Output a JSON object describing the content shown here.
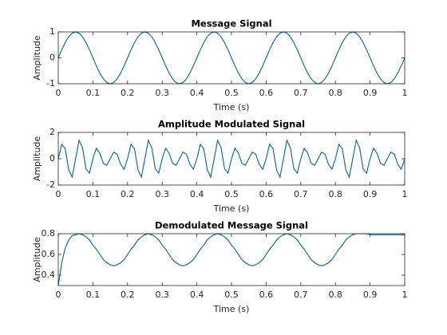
{
  "chart_data": [
    {
      "type": "line",
      "title": "Message Signal",
      "x_label": "Time (s)",
      "y_label": "Amplitude",
      "x": [
        0,
        0.01,
        0.02,
        0.03,
        0.04,
        0.05,
        0.06,
        0.07,
        0.08,
        0.09,
        0.1,
        0.11,
        0.12,
        0.13,
        0.14,
        0.15,
        0.16,
        0.17,
        0.18,
        0.19,
        0.2,
        0.21,
        0.22,
        0.23,
        0.24,
        0.25,
        0.26,
        0.27,
        0.28,
        0.29,
        0.3,
        0.31,
        0.32,
        0.33,
        0.34,
        0.35,
        0.36,
        0.37,
        0.38,
        0.39,
        0.4,
        0.41,
        0.42,
        0.43,
        0.44,
        0.45,
        0.46,
        0.47,
        0.48,
        0.49,
        0.5,
        0.51,
        0.52,
        0.53,
        0.54,
        0.55,
        0.56,
        0.57,
        0.58,
        0.59,
        0.6,
        0.61,
        0.62,
        0.63,
        0.64,
        0.65,
        0.66,
        0.67,
        0.68,
        0.69,
        0.7,
        0.71,
        0.72,
        0.73,
        0.74,
        0.75,
        0.76,
        0.77,
        0.78,
        0.79,
        0.8,
        0.81,
        0.82,
        0.83,
        0.84,
        0.85,
        0.86,
        0.87,
        0.88,
        0.89,
        0.9,
        0.91,
        0.92,
        0.93,
        0.94,
        0.95,
        0.96,
        0.97,
        0.98,
        0.99,
        1
      ],
      "series": [
        {
          "color": "#0e5f86",
          "values": [
            0,
            0.31,
            0.59,
            0.81,
            0.95,
            1,
            0.95,
            0.81,
            0.59,
            0.31,
            0,
            -0.31,
            -0.59,
            -0.81,
            -0.95,
            -1,
            -0.95,
            -0.81,
            -0.59,
            -0.31,
            0,
            0.31,
            0.59,
            0.81,
            0.95,
            1,
            0.95,
            0.81,
            0.59,
            0.31,
            0,
            -0.31,
            -0.59,
            -0.81,
            -0.95,
            -1,
            -0.95,
            -0.81,
            -0.59,
            -0.31,
            0,
            0.31,
            0.59,
            0.81,
            0.95,
            1,
            0.95,
            0.81,
            0.59,
            0.31,
            0,
            -0.31,
            -0.59,
            -0.81,
            -0.95,
            -1,
            -0.95,
            -0.81,
            -0.59,
            -0.31,
            0,
            0.31,
            0.59,
            0.81,
            0.95,
            1,
            0.95,
            0.81,
            0.59,
            0.31,
            0,
            -0.31,
            -0.59,
            -0.81,
            -0.95,
            -1,
            -0.95,
            -0.81,
            -0.59,
            -0.31,
            0,
            0.31,
            0.59,
            0.81,
            0.95,
            1,
            0.95,
            0.81,
            0.59,
            0.31,
            0,
            -0.31,
            -0.59,
            -0.81,
            -0.95,
            -1,
            -0.95,
            -0.81,
            -0.59,
            -0.31,
            0
          ]
        }
      ],
      "xlim": [
        0,
        1
      ],
      "xticks": [
        0,
        0.1,
        0.2,
        0.3,
        0.4,
        0.5,
        0.6,
        0.7,
        0.8,
        0.9,
        1
      ],
      "ylim": [
        -1,
        1
      ],
      "yticks": [
        -1,
        0,
        1
      ]
    },
    {
      "type": "line",
      "title": "Amplitude Modulated Signal",
      "x_label": "Time (s)",
      "y_label": "Amplitude",
      "x": [
        0,
        0.01,
        0.02,
        0.03,
        0.04,
        0.05,
        0.06,
        0.07,
        0.08,
        0.09,
        0.1,
        0.11,
        0.12,
        0.13,
        0.14,
        0.15,
        0.16,
        0.17,
        0.18,
        0.19,
        0.2,
        0.21,
        0.22,
        0.23,
        0.24,
        0.25,
        0.26,
        0.27,
        0.28,
        0.29,
        0.3,
        0.31,
        0.32,
        0.33,
        0.34,
        0.35,
        0.36,
        0.37,
        0.38,
        0.39,
        0.4,
        0.41,
        0.42,
        0.43,
        0.44,
        0.45,
        0.46,
        0.47,
        0.48,
        0.49,
        0.5,
        0.51,
        0.52,
        0.53,
        0.54,
        0.55,
        0.56,
        0.57,
        0.58,
        0.59,
        0.6,
        0.61,
        0.62,
        0.63,
        0.64,
        0.65,
        0.66,
        0.67,
        0.68,
        0.69,
        0.7,
        0.71,
        0.72,
        0.73,
        0.74,
        0.75,
        0.76,
        0.77,
        0.78,
        0.79,
        0.8,
        0.81,
        0.82,
        0.83,
        0.84,
        0.85,
        0.86,
        0.87,
        0.88,
        0.89,
        0.9,
        0.91,
        0.92,
        0.93,
        0.94,
        0.95,
        0.96,
        0.97,
        0.98,
        0.99,
        1
      ],
      "series": [
        {
          "color": "#0e5f86",
          "values": [
            0,
            1.1,
            0.76,
            -0.83,
            -1.4,
            0,
            1.4,
            0.83,
            -0.76,
            -1.1,
            0,
            0.8,
            0.42,
            -0.35,
            -0.5,
            0,
            0.5,
            0.35,
            -0.42,
            -0.8,
            0,
            1.1,
            0.76,
            -0.83,
            -1.4,
            0,
            1.4,
            0.83,
            -0.76,
            -1.1,
            0,
            0.8,
            0.42,
            -0.35,
            -0.5,
            0,
            0.5,
            0.35,
            -0.42,
            -0.8,
            0,
            1.1,
            0.76,
            -0.83,
            -1.4,
            0,
            1.4,
            0.83,
            -0.76,
            -1.1,
            0,
            0.8,
            0.42,
            -0.35,
            -0.5,
            0,
            0.5,
            0.35,
            -0.42,
            -0.8,
            0,
            1.1,
            0.76,
            -0.83,
            -1.4,
            0,
            1.4,
            0.83,
            -0.76,
            -1.1,
            0,
            0.8,
            0.42,
            -0.35,
            -0.5,
            0,
            0.5,
            0.35,
            -0.42,
            -0.8,
            0,
            1.1,
            0.76,
            -0.83,
            -1.4,
            0,
            1.4,
            0.83,
            -0.76,
            -1.1,
            0,
            0.8,
            0.42,
            -0.35,
            -0.5,
            0,
            0.5,
            0.35,
            -0.42,
            -0.8,
            0
          ]
        }
      ],
      "xlim": [
        0,
        1
      ],
      "xticks": [
        0,
        0.1,
        0.2,
        0.3,
        0.4,
        0.5,
        0.6,
        0.7,
        0.8,
        0.9,
        1
      ],
      "ylim": [
        -2,
        2
      ],
      "yticks": [
        -2,
        0,
        2
      ]
    },
    {
      "type": "line",
      "title": "Demodulated Message Signal",
      "x_label": "Time (s)",
      "y_label": "Amplitude",
      "x": [
        0,
        0.01,
        0.02,
        0.03,
        0.04,
        0.05,
        0.06,
        0.07,
        0.08,
        0.09,
        0.1,
        0.11,
        0.12,
        0.13,
        0.14,
        0.15,
        0.16,
        0.17,
        0.18,
        0.19,
        0.2,
        0.21,
        0.22,
        0.23,
        0.24,
        0.25,
        0.26,
        0.27,
        0.28,
        0.29,
        0.3,
        0.31,
        0.32,
        0.33,
        0.34,
        0.35,
        0.36,
        0.37,
        0.38,
        0.39,
        0.4,
        0.41,
        0.42,
        0.43,
        0.44,
        0.45,
        0.46,
        0.47,
        0.48,
        0.49,
        0.5,
        0.51,
        0.52,
        0.53,
        0.54,
        0.55,
        0.56,
        0.57,
        0.58,
        0.59,
        0.6,
        0.61,
        0.62,
        0.63,
        0.64,
        0.65,
        0.66,
        0.67,
        0.68,
        0.69,
        0.7,
        0.71,
        0.72,
        0.73,
        0.74,
        0.75,
        0.76,
        0.77,
        0.78,
        0.79,
        0.8,
        0.81,
        0.82,
        0.83,
        0.84,
        0.85,
        0.86,
        0.87,
        0.88,
        0.89,
        0.9,
        0.91,
        0.92,
        0.93,
        0.94,
        0.95,
        0.96,
        0.97,
        0.98,
        0.99,
        1
      ],
      "series": [
        {
          "color": "#0e5f86",
          "values": [
            0.3,
            0.52,
            0.66,
            0.74,
            0.78,
            0.79,
            0.8,
            0.79,
            0.77,
            0.74,
            0.69,
            0.65,
            0.6,
            0.55,
            0.52,
            0.5,
            0.49,
            0.5,
            0.52,
            0.55,
            0.6,
            0.65,
            0.69,
            0.74,
            0.77,
            0.79,
            0.8,
            0.79,
            0.77,
            0.74,
            0.69,
            0.65,
            0.6,
            0.55,
            0.52,
            0.5,
            0.49,
            0.5,
            0.52,
            0.55,
            0.6,
            0.65,
            0.69,
            0.74,
            0.77,
            0.79,
            0.8,
            0.79,
            0.77,
            0.74,
            0.69,
            0.65,
            0.6,
            0.55,
            0.52,
            0.5,
            0.49,
            0.5,
            0.52,
            0.55,
            0.6,
            0.65,
            0.69,
            0.74,
            0.77,
            0.79,
            0.8,
            0.79,
            0.77,
            0.74,
            0.69,
            0.65,
            0.6,
            0.55,
            0.52,
            0.5,
            0.49,
            0.5,
            0.52,
            0.55,
            0.6,
            0.65,
            0.69,
            0.74,
            0.77,
            0.79,
            0.8,
            0.8,
            0.8,
            0.8,
            0.79,
            0.79,
            0.79,
            0.79,
            0.79,
            0.79,
            0.79,
            0.79,
            0.79,
            0.79,
            0.79
          ]
        }
      ],
      "xlim": [
        0,
        1
      ],
      "xticks": [
        0,
        0.1,
        0.2,
        0.3,
        0.4,
        0.5,
        0.6,
        0.7,
        0.8,
        0.9,
        1
      ],
      "ylim": [
        0.3,
        0.8
      ],
      "yticks": [
        0.4,
        0.6,
        0.8
      ]
    }
  ]
}
